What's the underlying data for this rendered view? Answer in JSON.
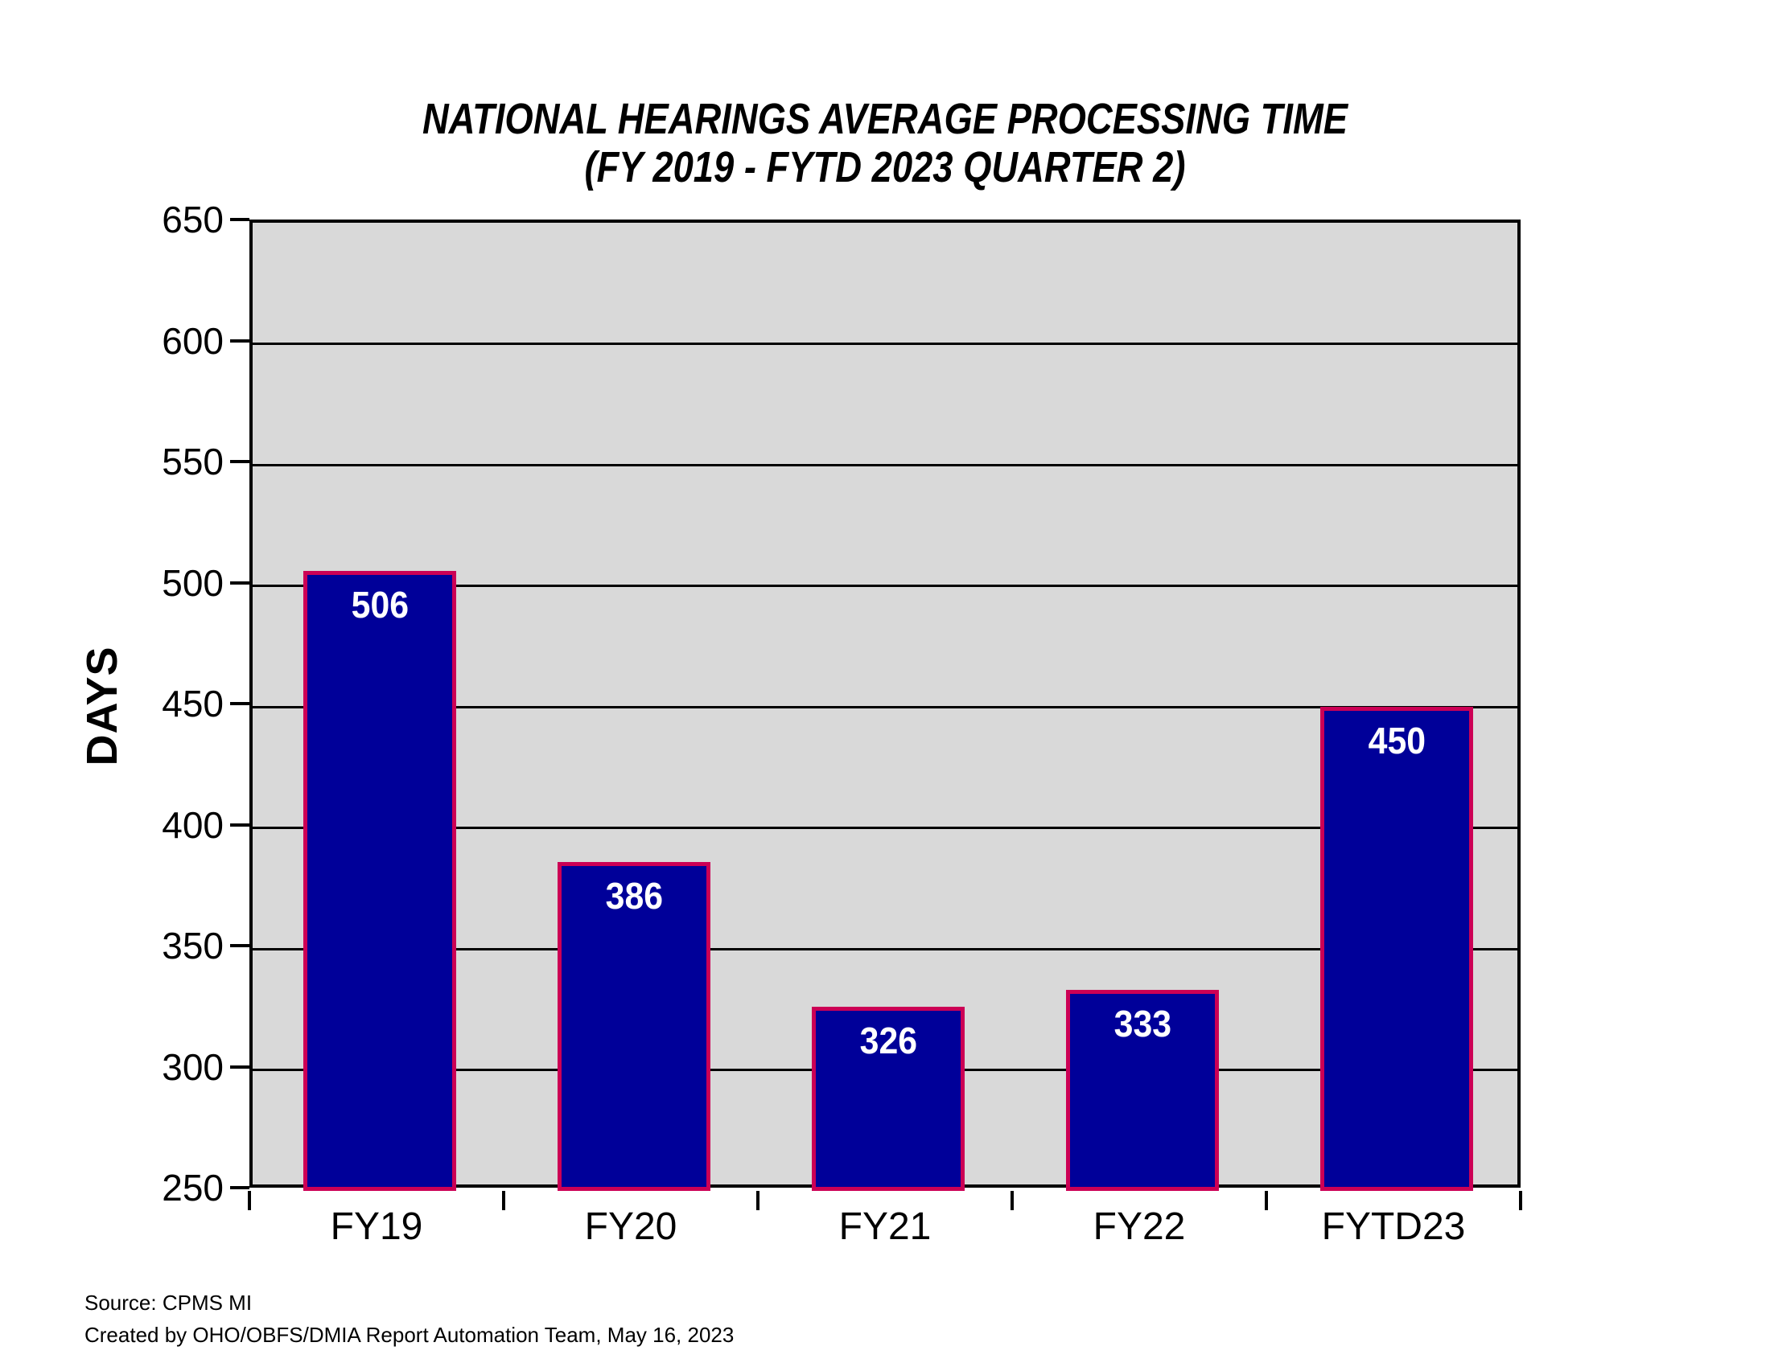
{
  "title": {
    "line1": "NATIONAL HEARINGS AVERAGE PROCESSING TIME",
    "line2": "(FY 2019 - FYTD 2023 QUARTER 2)"
  },
  "chart_data": {
    "type": "bar",
    "categories": [
      "FY19",
      "FY20",
      "FY21",
      "FY22",
      "FYTD23"
    ],
    "values": [
      506,
      386,
      326,
      333,
      450
    ],
    "title": "NATIONAL HEARINGS AVERAGE PROCESSING TIME (FY 2019 - FYTD 2023 QUARTER 2)",
    "xlabel": "",
    "ylabel": "DAYS",
    "ylim": [
      250,
      650
    ],
    "ytick_step": 50,
    "grid": true,
    "legend": false,
    "value_labels": true,
    "colors": {
      "bar_fill": "#000099",
      "bar_border": "#CC0055",
      "plot_background": "#D9D9D9",
      "gridline": "#000000",
      "value_label_text": "#FFFFFF",
      "axis_text": "#000000"
    }
  },
  "footer": {
    "source": "Source: CPMS MI",
    "created": "Created by OHO/OBFS/DMIA Report Automation Team, May 16, 2023"
  }
}
